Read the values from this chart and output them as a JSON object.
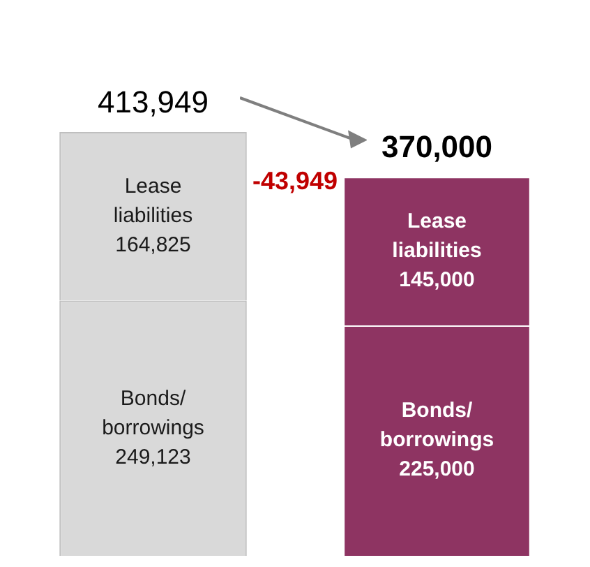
{
  "chart_data": {
    "type": "bar",
    "stacked": true,
    "categories": [
      null,
      null
    ],
    "series": [
      {
        "name": "Bonds/ borrowings",
        "colors": [
          "#d9d9d9",
          "#8e3462"
        ],
        "values": [
          249123,
          225000
        ],
        "value_labels": [
          "249,123",
          "225,000"
        ]
      },
      {
        "name": "Lease liabilities",
        "colors": [
          "#d9d9d9",
          "#8e3462"
        ],
        "values": [
          164825,
          145000
        ],
        "value_labels": [
          "164,825",
          "145,000"
        ]
      }
    ],
    "totals": [
      "413,949",
      "370,000"
    ],
    "annotations": [
      "-43,949"
    ],
    "legend": false
  }
}
